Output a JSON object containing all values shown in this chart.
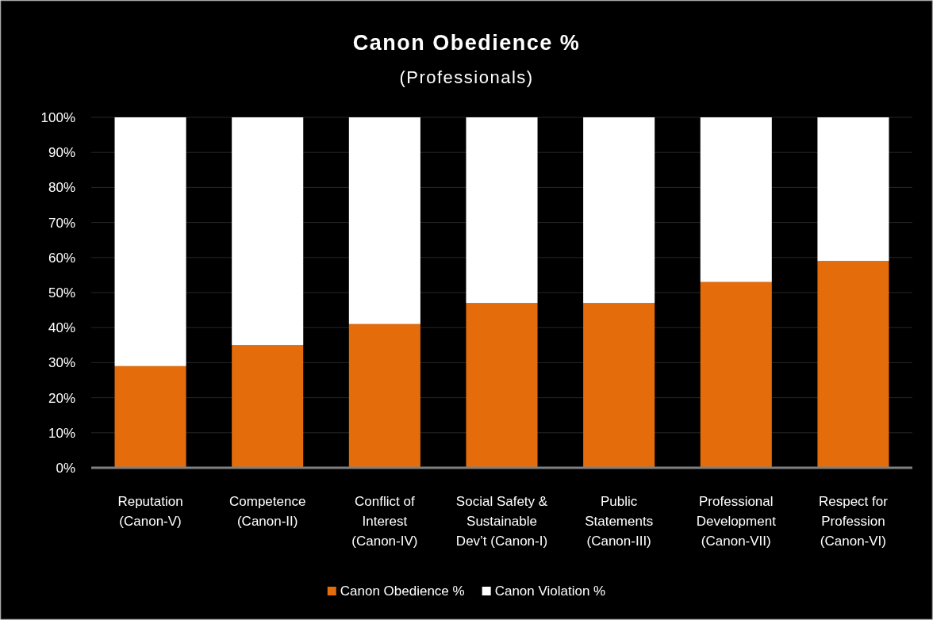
{
  "chart_data": {
    "type": "bar",
    "title": "Canon Obedience %",
    "subtitle": "(Professionals)",
    "categories": [
      "Reputation\n(Canon-V)",
      "Competence\n(Canon-II)",
      "Conflict of\nInterest\n(Canon-IV)",
      "Social Safety &\nSustainable\nDev’t (Canon-I)",
      "Public\nStatements\n(Canon-III)",
      "Professional\nDevelopment\n(Canon-VII)",
      "Respect for\nProfession\n(Canon-VI)"
    ],
    "series": [
      {
        "name": "Canon Obedience %",
        "color": "#e46c0a",
        "values": [
          29,
          35,
          41,
          47,
          47,
          53,
          59
        ]
      },
      {
        "name": "Canon Violation %",
        "color": "#ffffff",
        "values": [
          71,
          65,
          59,
          53,
          53,
          47,
          41
        ]
      }
    ],
    "stacked": true,
    "ylim": [
      0,
      100
    ],
    "yticks": [
      {
        "value": 0,
        "label": "0%"
      },
      {
        "value": 10,
        "label": "10%"
      },
      {
        "value": 20,
        "label": "20%"
      },
      {
        "value": 30,
        "label": "30%"
      },
      {
        "value": 40,
        "label": "40%"
      },
      {
        "value": 50,
        "label": "50%"
      },
      {
        "value": 60,
        "label": "60%"
      },
      {
        "value": 70,
        "label": "70%"
      },
      {
        "value": 80,
        "label": "80%"
      },
      {
        "value": 90,
        "label": "90%"
      },
      {
        "value": 100,
        "label": "100%"
      }
    ],
    "grid": "y",
    "legend": "bottom"
  }
}
